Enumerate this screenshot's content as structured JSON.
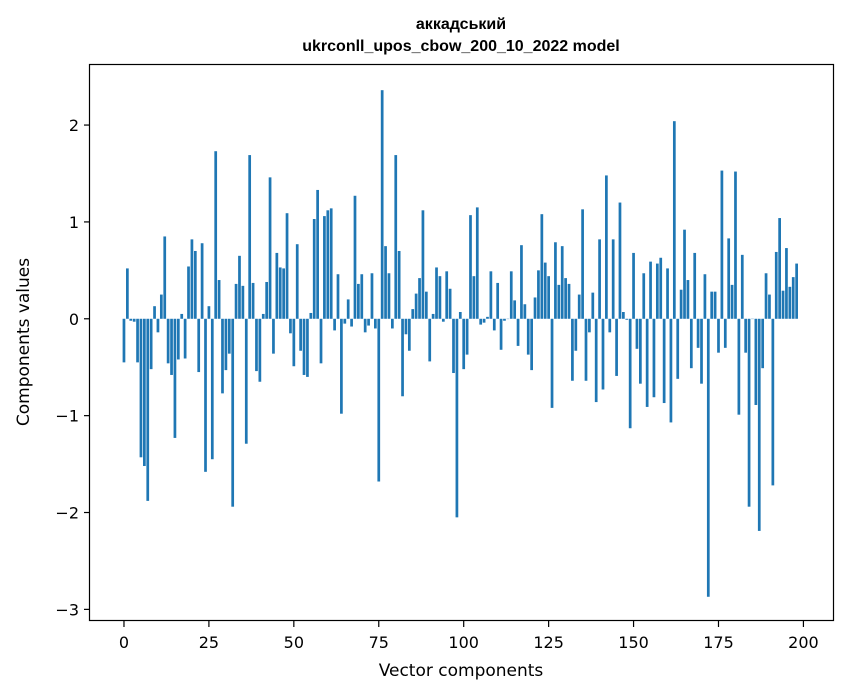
{
  "chart_data": {
    "type": "bar",
    "title_line1": "аккадський",
    "title_line2": "ukrconll_upos_cbow_200_10_2022 model",
    "xlabel": "Vector components",
    "ylabel": "Components values",
    "xlim": [
      -10,
      209
    ],
    "ylim": [
      -3.12,
      2.62
    ],
    "xticks": [
      0,
      25,
      50,
      75,
      100,
      125,
      150,
      175,
      200
    ],
    "xtick_labels": [
      "0",
      "25",
      "50",
      "75",
      "100",
      "125",
      "150",
      "175",
      "200"
    ],
    "yticks": [
      -3,
      -2,
      -1,
      0,
      1,
      2
    ],
    "ytick_labels": [
      "−3",
      "−2",
      "−1",
      "0",
      "1",
      "2"
    ],
    "bar_color": "#1f77b4",
    "values": [
      -0.45,
      0.52,
      -0.02,
      -0.03,
      -0.45,
      -1.43,
      -1.52,
      -1.88,
      -0.52,
      0.13,
      -0.14,
      0.25,
      0.85,
      -0.46,
      -0.58,
      -1.23,
      -0.42,
      0.05,
      -0.41,
      0.54,
      0.82,
      0.7,
      -0.55,
      0.78,
      -1.58,
      0.13,
      -1.45,
      1.73,
      0.4,
      -0.77,
      -0.53,
      -0.36,
      -1.94,
      0.36,
      0.65,
      0.34,
      -1.29,
      1.69,
      0.37,
      -0.54,
      -0.65,
      0.05,
      0.38,
      1.46,
      -0.36,
      0.68,
      0.53,
      0.52,
      1.09,
      -0.15,
      -0.49,
      0.77,
      -0.33,
      -0.58,
      -0.6,
      0.06,
      1.03,
      1.33,
      -0.46,
      1.06,
      1.12,
      1.14,
      -0.12,
      0.46,
      -0.98,
      -0.05,
      0.2,
      -0.08,
      1.27,
      0.36,
      0.46,
      -0.14,
      -0.07,
      0.47,
      -0.1,
      -1.68,
      2.36,
      0.75,
      0.47,
      -0.1,
      1.69,
      0.7,
      -0.8,
      -0.16,
      -0.33,
      0.1,
      0.26,
      0.42,
      1.12,
      0.28,
      -0.44,
      0.05,
      0.53,
      0.44,
      -0.03,
      0.49,
      0.31,
      -0.56,
      -2.05,
      0.07,
      -0.52,
      -0.37,
      1.07,
      0.44,
      1.15,
      -0.06,
      -0.04,
      0.02,
      0.49,
      -0.12,
      0.37,
      -0.32,
      -0.02,
      0.0,
      0.49,
      0.19,
      -0.28,
      0.76,
      0.15,
      -0.37,
      -0.53,
      0.22,
      0.5,
      1.08,
      0.58,
      0.44,
      -0.92,
      0.79,
      0.35,
      0.75,
      0.42,
      0.36,
      -0.64,
      -0.33,
      0.25,
      1.13,
      -0.64,
      -0.14,
      0.27,
      -0.86,
      0.82,
      -0.73,
      1.48,
      -0.14,
      0.82,
      -0.59,
      1.2,
      0.07,
      -0.01,
      -1.13,
      0.68,
      -0.31,
      -0.67,
      0.47,
      -0.91,
      0.59,
      -0.81,
      0.57,
      0.63,
      -0.87,
      0.52,
      -1.07,
      2.04,
      -0.62,
      0.3,
      0.92,
      0.4,
      -0.51,
      0.68,
      -0.3,
      -0.67,
      0.46,
      -2.87,
      0.28,
      0.28,
      -0.35,
      1.53,
      -0.3,
      0.83,
      0.35,
      1.52,
      -0.99,
      0.66,
      -0.35,
      -1.94,
      0.0,
      -0.89,
      -2.19,
      -0.51,
      0.47,
      0.25,
      -1.72,
      0.69,
      1.04,
      0.29,
      0.73,
      0.33,
      0.43,
      0.57
    ]
  }
}
